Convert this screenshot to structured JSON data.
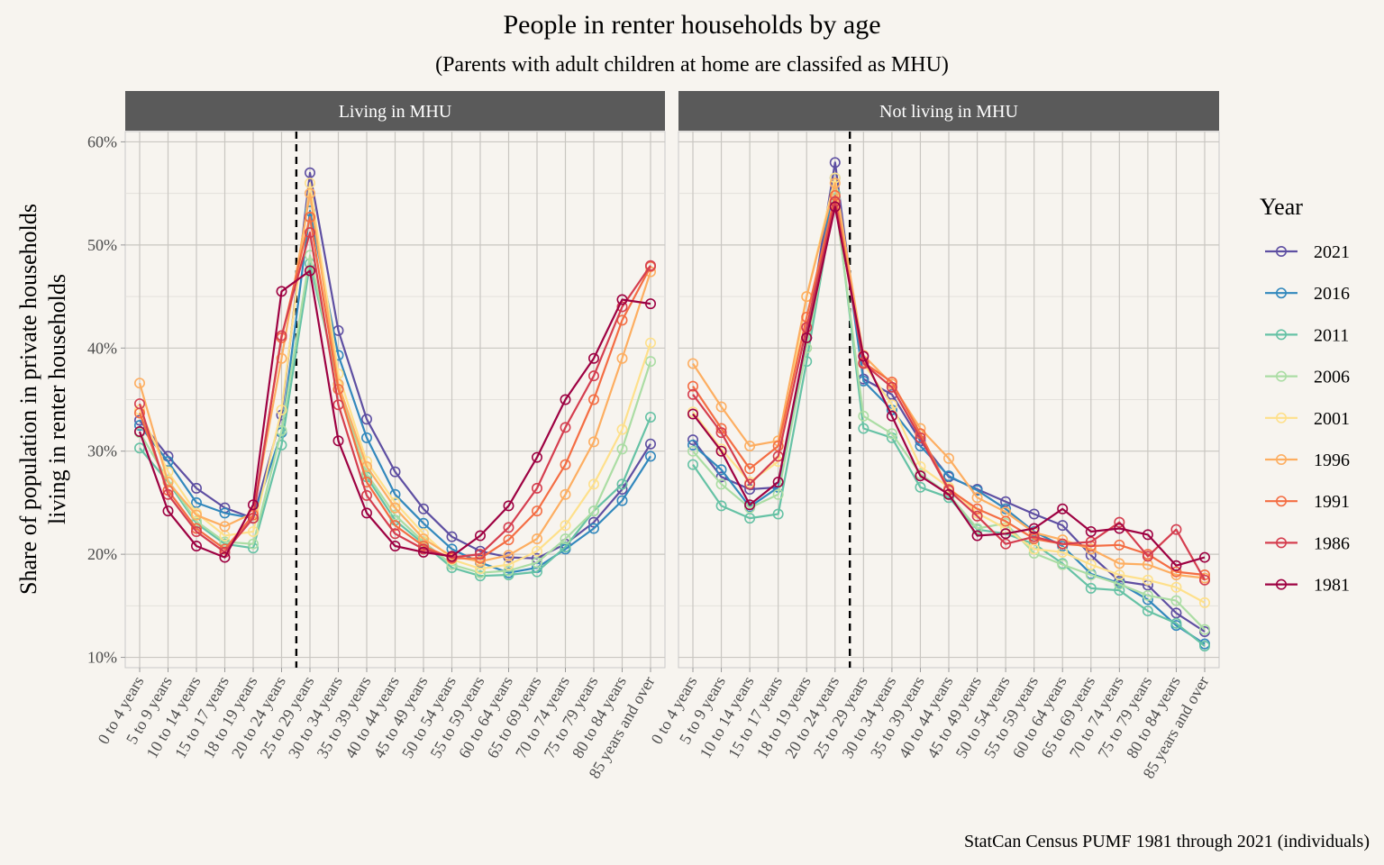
{
  "title": "People in renter households by age",
  "subtitle": "(Parents with adult children at home are classifed as MHU)",
  "caption": "StatCan Census PUMF 1981 through 2021 (individuals)",
  "chart_data": {
    "type": "line",
    "ylabel": "Share of population in private households\nliving in renter households",
    "xlabel": "",
    "ylim": [
      0.09,
      0.61
    ],
    "yticks": [
      0.1,
      0.2,
      0.3,
      0.4,
      0.5,
      0.6
    ],
    "ytick_labels": [
      "10%",
      "20%",
      "30%",
      "40%",
      "50%",
      "60%"
    ],
    "grid": true,
    "legend_title": "Year",
    "legend_position": "right",
    "reference_line": {
      "style": "dashed",
      "between": [
        "20 to 24 years",
        "25 to 29 years"
      ]
    },
    "categories": [
      "0 to 4 years",
      "5 to 9 years",
      "10 to 14 years",
      "15 to 17 years",
      "18 to 19 years",
      "20 to 24 years",
      "25 to 29 years",
      "30 to 34 years",
      "35 to 39 years",
      "40 to 44 years",
      "45 to 49 years",
      "50 to 54 years",
      "55 to 59 years",
      "60 to 64 years",
      "65 to 69 years",
      "70 to 74 years",
      "75 to 79 years",
      "80 to 84 years",
      "85 years and over"
    ],
    "colors": {
      "2021": "#5e4fa2",
      "2016": "#3288bd",
      "2011": "#66c2a5",
      "2006": "#abdda4",
      "2001": "#fee08b",
      "1996": "#fdae61",
      "1991": "#f46d43",
      "1986": "#d53e4f",
      "1981": "#9e0142"
    },
    "panels": [
      {
        "name": "Living in MHU",
        "series": [
          {
            "name": "2021",
            "values": [
              0.33,
              0.295,
              0.264,
              0.245,
              0.235,
              0.335,
              0.57,
              0.417,
              0.331,
              0.28,
              0.244,
              0.217,
              0.203,
              0.197,
              0.196,
              0.21,
              0.231,
              0.263,
              0.307
            ]
          },
          {
            "name": "2016",
            "values": [
              0.325,
              0.29,
              0.25,
              0.24,
              0.235,
              0.318,
              0.533,
              0.393,
              0.313,
              0.258,
              0.23,
              0.205,
              0.192,
              0.182,
              0.187,
              0.205,
              0.225,
              0.252,
              0.295
            ]
          },
          {
            "name": "2011",
            "values": [
              0.303,
              0.27,
              0.23,
              0.21,
              0.206,
              0.306,
              0.482,
              0.365,
              0.275,
              0.233,
              0.21,
              0.187,
              0.179,
              0.18,
              0.183,
              0.207,
              0.242,
              0.268,
              0.333
            ]
          },
          {
            "name": "2006",
            "values": [
              0.318,
              0.272,
              0.232,
              0.212,
              0.21,
              0.32,
              0.49,
              0.36,
              0.278,
              0.238,
              0.212,
              0.19,
              0.182,
              0.184,
              0.192,
              0.215,
              0.242,
              0.302,
              0.387
            ]
          },
          {
            "name": "2001",
            "values": [
              0.34,
              0.28,
              0.24,
              0.218,
              0.222,
              0.34,
              0.56,
              0.375,
              0.29,
              0.25,
              0.22,
              0.195,
              0.186,
              0.19,
              0.203,
              0.228,
              0.268,
              0.321,
              0.405
            ]
          },
          {
            "name": "1996",
            "values": [
              0.366,
              0.27,
              0.238,
              0.227,
              0.24,
              0.39,
              0.55,
              0.365,
              0.285,
              0.245,
              0.215,
              0.198,
              0.193,
              0.199,
              0.215,
              0.258,
              0.309,
              0.39,
              0.474
            ]
          },
          {
            "name": "1991",
            "values": [
              0.337,
              0.262,
              0.225,
              0.205,
              0.238,
              0.41,
              0.527,
              0.36,
              0.27,
              0.228,
              0.208,
              0.196,
              0.196,
              0.214,
              0.242,
              0.287,
              0.35,
              0.427,
              0.479
            ]
          },
          {
            "name": "1986",
            "values": [
              0.346,
              0.258,
              0.222,
              0.202,
              0.235,
              0.412,
              0.512,
              0.345,
              0.257,
              0.22,
              0.205,
              0.197,
              0.2,
              0.226,
              0.264,
              0.323,
              0.373,
              0.44,
              0.48
            ]
          },
          {
            "name": "1981",
            "values": [
              0.319,
              0.242,
              0.208,
              0.197,
              0.248,
              0.455,
              0.475,
              0.31,
              0.24,
              0.208,
              0.202,
              0.198,
              0.218,
              0.247,
              0.294,
              0.35,
              0.39,
              0.447,
              0.443
            ]
          }
        ]
      },
      {
        "name": "Not living in MHU",
        "series": [
          {
            "name": "2021",
            "values": [
              0.311,
              0.275,
              0.263,
              0.265,
              0.41,
              0.58,
              0.37,
              0.355,
              0.31,
              0.275,
              0.263,
              0.251,
              0.239,
              0.228,
              0.199,
              0.174,
              0.17,
              0.143,
              0.125
            ]
          },
          {
            "name": "2016",
            "values": [
              0.306,
              0.282,
              0.246,
              0.265,
              0.41,
              0.565,
              0.368,
              0.34,
              0.305,
              0.276,
              0.262,
              0.244,
              0.222,
              0.208,
              0.181,
              0.172,
              0.156,
              0.131,
              0.113
            ]
          },
          {
            "name": "2011",
            "values": [
              0.287,
              0.247,
              0.235,
              0.239,
              0.387,
              0.55,
              0.322,
              0.313,
              0.265,
              0.255,
              0.224,
              0.22,
              0.21,
              0.191,
              0.167,
              0.165,
              0.145,
              0.133,
              0.111
            ]
          },
          {
            "name": "2006",
            "values": [
              0.3,
              0.268,
              0.245,
              0.258,
              0.4,
              0.545,
              0.334,
              0.317,
              0.278,
              0.258,
              0.225,
              0.23,
              0.201,
              0.19,
              0.18,
              0.171,
              0.16,
              0.155,
              0.127
            ]
          },
          {
            "name": "2001",
            "values": [
              0.338,
              0.302,
              0.27,
              0.29,
              0.45,
              0.565,
              0.385,
              0.345,
              0.285,
              0.265,
              0.24,
              0.225,
              0.205,
              0.202,
              0.19,
              0.18,
              0.175,
              0.168,
              0.153
            ]
          },
          {
            "name": "1996",
            "values": [
              0.385,
              0.343,
              0.305,
              0.31,
              0.45,
              0.56,
              0.393,
              0.365,
              0.322,
              0.293,
              0.255,
              0.241,
              0.221,
              0.214,
              0.205,
              0.191,
              0.19,
              0.18,
              0.177
            ]
          },
          {
            "name": "1991",
            "values": [
              0.363,
              0.322,
              0.283,
              0.305,
              0.43,
              0.548,
              0.386,
              0.367,
              0.317,
              0.263,
              0.244,
              0.232,
              0.215,
              0.21,
              0.208,
              0.209,
              0.2,
              0.183,
              0.18
            ]
          },
          {
            "name": "1986",
            "values": [
              0.355,
              0.318,
              0.268,
              0.295,
              0.42,
              0.542,
              0.385,
              0.362,
              0.313,
              0.262,
              0.237,
              0.21,
              0.217,
              0.21,
              0.212,
              0.231,
              0.198,
              0.224,
              0.175
            ]
          },
          {
            "name": "1981",
            "values": [
              0.336,
              0.3,
              0.248,
              0.27,
              0.41,
              0.537,
              0.392,
              0.334,
              0.276,
              0.258,
              0.218,
              0.22,
              0.225,
              0.244,
              0.222,
              0.225,
              0.219,
              0.189,
              0.197
            ]
          }
        ]
      }
    ]
  }
}
